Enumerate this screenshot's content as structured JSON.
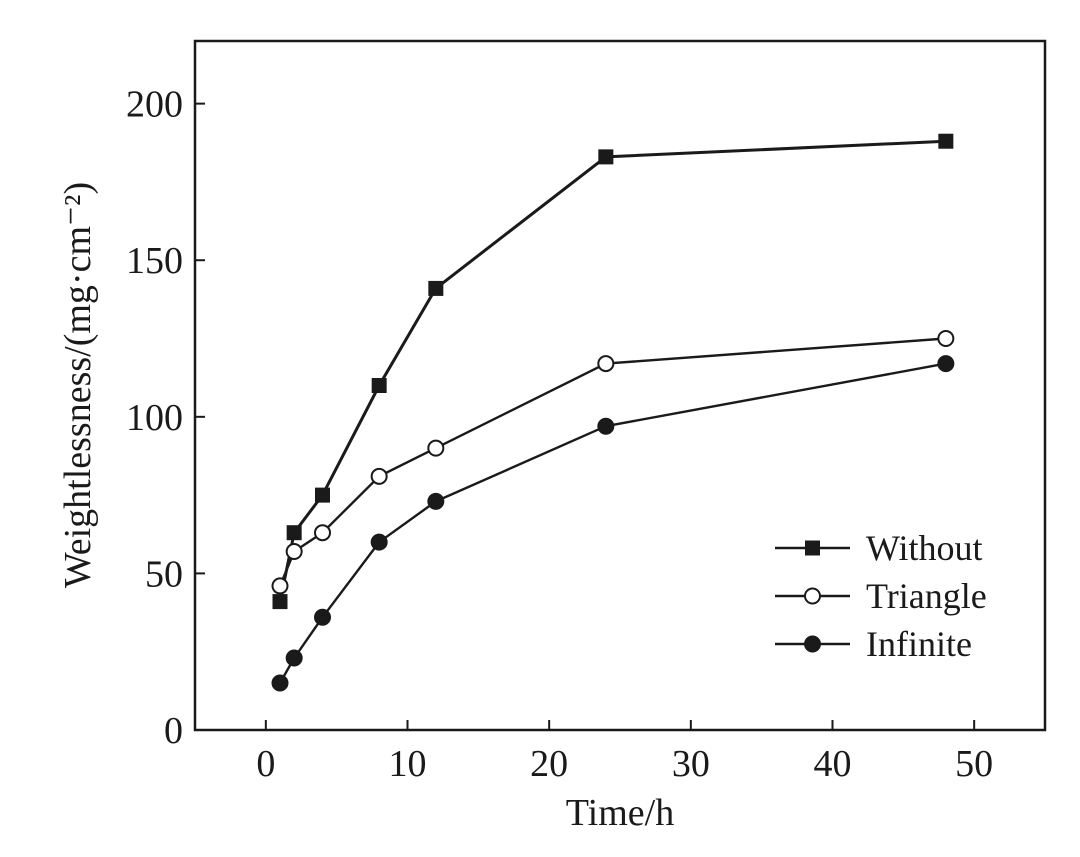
{
  "chart_data": {
    "type": "line",
    "title": "",
    "xlabel": "Time/h",
    "ylabel": "Weightlessness/(mg·cm⁻²)",
    "xlim": [
      -5,
      55
    ],
    "ylim": [
      0,
      220
    ],
    "xticks": [
      0,
      10,
      20,
      30,
      40,
      50
    ],
    "yticks": [
      0,
      50,
      100,
      150,
      200
    ],
    "xtick_labels": [
      "0",
      "10",
      "20",
      "30",
      "40",
      "50"
    ],
    "ytick_labels": [
      "0",
      "50",
      "100",
      "150",
      "200"
    ],
    "grid": false,
    "legend_position": "bottom-right",
    "x": [
      1,
      2,
      4,
      8,
      12,
      24,
      48
    ],
    "series": [
      {
        "name": "Without",
        "marker": "filled-square",
        "values": [
          41,
          63,
          75,
          110,
          141,
          183,
          188
        ]
      },
      {
        "name": "Triangle",
        "marker": "open-circle",
        "values": [
          46,
          57,
          63,
          81,
          90,
          117,
          125
        ]
      },
      {
        "name": "Infinite",
        "marker": "filled-circle",
        "values": [
          15,
          23,
          36,
          60,
          73,
          97,
          117
        ]
      }
    ],
    "colors": {
      "line": "#1a1a1a",
      "marker_fill": "#1a1a1a",
      "open_marker_fill": "#ffffff"
    }
  }
}
